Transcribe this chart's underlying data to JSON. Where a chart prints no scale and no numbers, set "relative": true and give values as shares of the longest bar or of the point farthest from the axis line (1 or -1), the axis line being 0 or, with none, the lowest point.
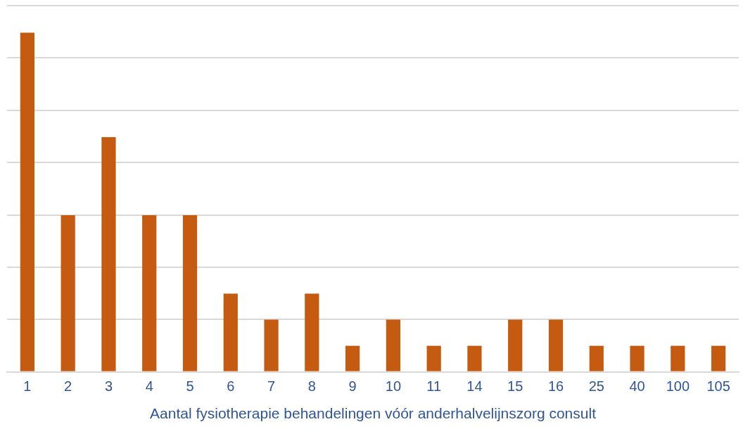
{
  "chart_data": {
    "type": "bar",
    "xlabel": "Aantal fysiotherapie behandelingen vóór anderhalvelijnszorg consult",
    "categories": [
      "1",
      "2",
      "3",
      "4",
      "5",
      "6",
      "7",
      "8",
      "9",
      "10",
      "11",
      "14",
      "15",
      "16",
      "25",
      "40",
      "100",
      "105"
    ],
    "values": [
      1,
      0.462,
      0.692,
      0.462,
      0.462,
      0.231,
      0.154,
      0.231,
      0.077,
      0.154,
      0.077,
      0.077,
      0.154,
      0.154,
      0.077,
      0.077,
      0.077,
      0.077
    ],
    "color": "#c55a11",
    "relative": true,
    "grid": "y",
    "legend": false
  }
}
